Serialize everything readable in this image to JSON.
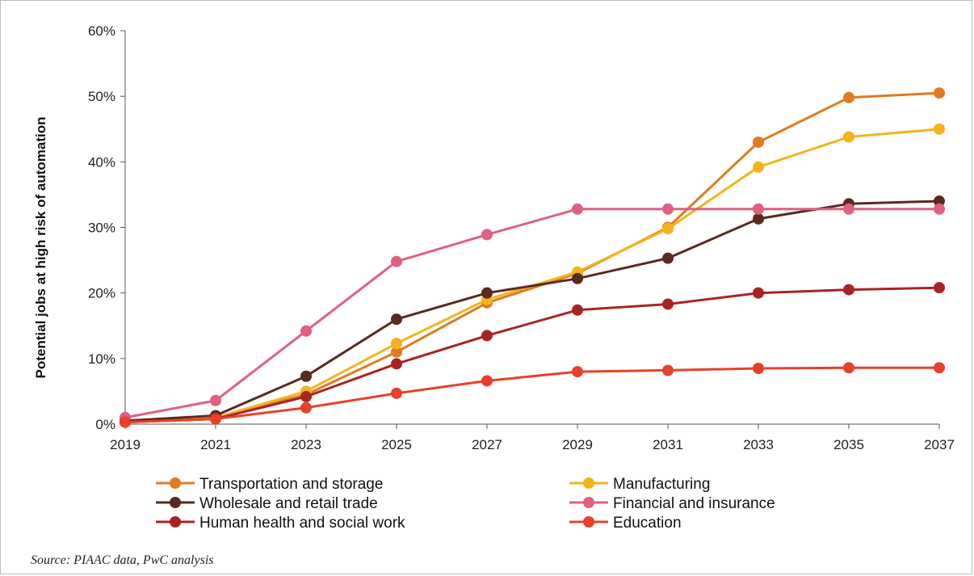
{
  "chart_data": {
    "type": "line",
    "title": "",
    "xlabel": "",
    "ylabel": "Potential jobs at high risk of automation",
    "x": [
      "2019",
      "2021",
      "2023",
      "2025",
      "2027",
      "2029",
      "2031",
      "2033",
      "2035",
      "2037"
    ],
    "ylim": [
      0,
      60
    ],
    "y_ticks": [
      "0%",
      "10%",
      "20%",
      "30%",
      "40%",
      "50%",
      "60%"
    ],
    "y_unit": "%",
    "grid": false,
    "legend_position": "bottom",
    "series": [
      {
        "name": "Transportation and storage",
        "color": "#e07b22",
        "values": [
          0.5,
          1.0,
          4.5,
          11,
          18.5,
          23,
          30,
          43,
          49.8,
          50.5
        ]
      },
      {
        "name": "Manufacturing",
        "color": "#f5b31b",
        "values": [
          0.5,
          1.0,
          5,
          12.3,
          19,
          23.2,
          29.8,
          39.2,
          43.8,
          45
        ]
      },
      {
        "name": "Wholesale and retail trade",
        "color": "#5a2a1e",
        "values": [
          0.5,
          1.3,
          7.3,
          16,
          20,
          22.2,
          25.3,
          31.3,
          33.6,
          34
        ]
      },
      {
        "name": "Financial and insurance",
        "color": "#e0607e",
        "values": [
          1.0,
          3.6,
          14.2,
          24.8,
          28.9,
          32.8,
          32.8,
          32.8,
          32.8,
          32.8
        ]
      },
      {
        "name": "Human health and social work",
        "color": "#a82424",
        "values": [
          0.3,
          0.8,
          4.2,
          9.2,
          13.5,
          17.4,
          18.3,
          20,
          20.5,
          20.8
        ]
      },
      {
        "name": "Education",
        "color": "#e8402a",
        "values": [
          0.3,
          0.8,
          2.5,
          4.7,
          6.6,
          8.0,
          8.2,
          8.5,
          8.6,
          8.6
        ]
      }
    ]
  },
  "source_text": "Source: PIAAC data, PwC analysis"
}
